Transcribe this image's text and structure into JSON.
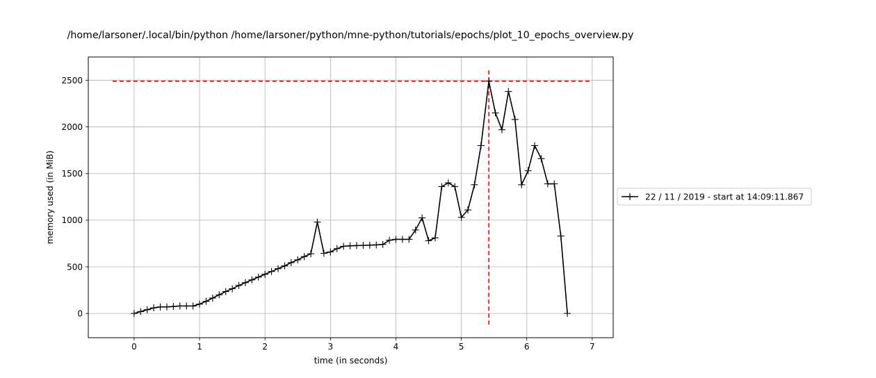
{
  "chart_data": {
    "type": "line",
    "title": "/home/larsoner/.local/bin/python /home/larsoner/python/mne-python/tutorials/epochs/plot_10_epochs_overview.py",
    "xlabel": "time (in seconds)",
    "ylabel": "memory used (in MiB)",
    "xlim": [
      -0.7,
      7.32
    ],
    "ylim": [
      -260,
      2750
    ],
    "xticks": [
      0,
      1,
      2,
      3,
      4,
      5,
      6,
      7
    ],
    "xtick_labels": [
      "0",
      "1",
      "2",
      "3",
      "4",
      "5",
      "6",
      "7"
    ],
    "yticks": [
      0,
      500,
      1000,
      1500,
      2000,
      2500
    ],
    "ytick_labels": [
      "0",
      "500",
      "1000",
      "1500",
      "2000",
      "2500"
    ],
    "grid": true,
    "legend_position": "outside-right",
    "series": [
      {
        "name": "22 / 11 / 2019 - start at 14:09:11.867",
        "color": "#000000",
        "marker": "plus",
        "x": [
          0,
          0.1,
          0.2,
          0.3,
          0.4,
          0.5,
          0.6,
          0.7,
          0.8,
          0.9,
          1.0,
          1.1,
          1.2,
          1.3,
          1.4,
          1.5,
          1.6,
          1.7,
          1.8,
          1.9,
          2.0,
          2.1,
          2.2,
          2.3,
          2.4,
          2.5,
          2.6,
          2.7,
          2.8,
          2.9,
          3.0,
          3.1,
          3.2,
          3.3,
          3.4,
          3.5,
          3.6,
          3.7,
          3.8,
          3.9,
          4.0,
          4.1,
          4.2,
          4.3,
          4.4,
          4.5,
          4.6,
          4.7,
          4.8,
          4.9,
          5.0,
          5.1,
          5.2,
          5.3,
          5.42,
          5.52,
          5.62,
          5.72,
          5.82,
          5.92,
          6.02,
          6.12,
          6.22,
          6.32,
          6.42,
          6.52,
          6.62
        ],
        "y": [
          0,
          20,
          40,
          60,
          70,
          70,
          75,
          80,
          80,
          80,
          100,
          130,
          165,
          200,
          235,
          265,
          300,
          330,
          360,
          390,
          420,
          450,
          480,
          510,
          545,
          575,
          610,
          640,
          980,
          645,
          660,
          695,
          720,
          725,
          728,
          730,
          732,
          735,
          740,
          785,
          795,
          795,
          795,
          895,
          1025,
          780,
          810,
          1360,
          1400,
          1360,
          1030,
          1110,
          1380,
          1800,
          2490,
          2150,
          1970,
          2380,
          2080,
          1380,
          1530,
          1800,
          1660,
          1390,
          1390,
          830,
          0
        ]
      }
    ],
    "reference_lines": [
      {
        "orientation": "horizontal",
        "y": 2490,
        "x_from": -0.33,
        "x_to": 6.97,
        "color": "#ff0000",
        "style": "dashed"
      },
      {
        "orientation": "vertical",
        "x": 5.42,
        "y_from": -120,
        "y_to": 2620,
        "color": "#ff0000",
        "style": "dashed"
      }
    ]
  },
  "colors": {
    "line": "#000000",
    "peak_marker": "#ff0000",
    "grid": "#b0b0b0",
    "axes": "#000000",
    "legend_border": "#cccccc"
  }
}
